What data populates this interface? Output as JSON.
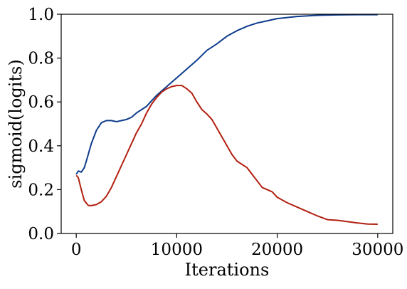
{
  "chart_data": {
    "type": "line",
    "title": "",
    "xlabel": "Iterations",
    "ylabel": "sigmoid(logits)",
    "xlim": [
      -1500,
      31500
    ],
    "ylim": [
      0.0,
      1.0
    ],
    "xticks": [
      0,
      10000,
      20000,
      30000
    ],
    "xtick_labels": [
      "0",
      "10000",
      "20000",
      "30000"
    ],
    "yticks": [
      0.0,
      0.2,
      0.4,
      0.6,
      0.8,
      1.0
    ],
    "ytick_labels": [
      "0.0",
      "0.2",
      "0.4",
      "0.6",
      "0.8",
      "1.0"
    ],
    "grid": false,
    "legend": false,
    "series": [
      {
        "color": "#0d3b8c",
        "points": [
          [
            0,
            0.27
          ],
          [
            200,
            0.285
          ],
          [
            500,
            0.28
          ],
          [
            800,
            0.3
          ],
          [
            1000,
            0.33
          ],
          [
            1500,
            0.41
          ],
          [
            2000,
            0.47
          ],
          [
            2500,
            0.505
          ],
          [
            3000,
            0.515
          ],
          [
            3500,
            0.515
          ],
          [
            4000,
            0.51
          ],
          [
            4500,
            0.515
          ],
          [
            5000,
            0.52
          ],
          [
            5500,
            0.53
          ],
          [
            6000,
            0.55
          ],
          [
            7000,
            0.58
          ],
          [
            8000,
            0.63
          ],
          [
            9000,
            0.67
          ],
          [
            10000,
            0.71
          ],
          [
            11000,
            0.75
          ],
          [
            12000,
            0.79
          ],
          [
            13000,
            0.835
          ],
          [
            14000,
            0.865
          ],
          [
            15000,
            0.9
          ],
          [
            16000,
            0.925
          ],
          [
            17000,
            0.945
          ],
          [
            18000,
            0.96
          ],
          [
            19000,
            0.97
          ],
          [
            20000,
            0.98
          ],
          [
            22000,
            0.99
          ],
          [
            24000,
            0.995
          ],
          [
            26000,
            0.997
          ],
          [
            28000,
            0.998
          ],
          [
            30000,
            0.998
          ]
        ]
      },
      {
        "color": "#b22010",
        "points": [
          [
            0,
            0.265
          ],
          [
            200,
            0.255
          ],
          [
            500,
            0.2
          ],
          [
            800,
            0.15
          ],
          [
            1200,
            0.128
          ],
          [
            1500,
            0.127
          ],
          [
            2000,
            0.132
          ],
          [
            2500,
            0.145
          ],
          [
            3000,
            0.17
          ],
          [
            3500,
            0.21
          ],
          [
            4000,
            0.26
          ],
          [
            4500,
            0.31
          ],
          [
            5000,
            0.36
          ],
          [
            5500,
            0.41
          ],
          [
            6000,
            0.46
          ],
          [
            6500,
            0.5
          ],
          [
            7000,
            0.55
          ],
          [
            7500,
            0.59
          ],
          [
            8000,
            0.62
          ],
          [
            8500,
            0.645
          ],
          [
            9000,
            0.66
          ],
          [
            9500,
            0.67
          ],
          [
            10000,
            0.675
          ],
          [
            10500,
            0.675
          ],
          [
            11000,
            0.66
          ],
          [
            11500,
            0.64
          ],
          [
            12000,
            0.6
          ],
          [
            12500,
            0.565
          ],
          [
            13000,
            0.545
          ],
          [
            13500,
            0.52
          ],
          [
            14000,
            0.48
          ],
          [
            14500,
            0.44
          ],
          [
            15000,
            0.4
          ],
          [
            15500,
            0.36
          ],
          [
            16000,
            0.33
          ],
          [
            17000,
            0.3
          ],
          [
            17500,
            0.27
          ],
          [
            18000,
            0.24
          ],
          [
            18500,
            0.21
          ],
          [
            19500,
            0.19
          ],
          [
            20000,
            0.165
          ],
          [
            21000,
            0.14
          ],
          [
            22000,
            0.12
          ],
          [
            23000,
            0.1
          ],
          [
            24000,
            0.08
          ],
          [
            25000,
            0.063
          ],
          [
            26000,
            0.06
          ],
          [
            27000,
            0.054
          ],
          [
            28000,
            0.048
          ],
          [
            29000,
            0.043
          ],
          [
            30000,
            0.042
          ]
        ]
      }
    ]
  }
}
